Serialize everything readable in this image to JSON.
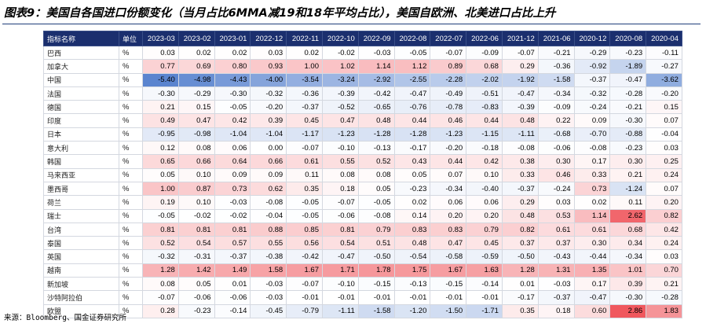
{
  "title": "图表9：美国自各国进口份额变化（当月占比6MMA减19和18年平均占比），美国自欧洲、北美进口占比上升",
  "table": {
    "header_name": "指标名称",
    "header_unit": "单位",
    "columns": [
      "2023-03",
      "2023-02",
      "2023-01",
      "2022-12",
      "2022-11",
      "2022-10",
      "2022-09",
      "2022-08",
      "2022-07",
      "2022-06",
      "2021-12",
      "2021-06",
      "2020-12",
      "2020-08",
      "2020-04"
    ],
    "rows": [
      {
        "name": "巴西",
        "unit": "%",
        "values": [
          "0.03",
          "0.02",
          "0.02",
          "0.03",
          "0.02",
          "-0.02",
          "-0.03",
          "-0.05",
          "-0.07",
          "-0.09",
          "-0.07",
          "-0.21",
          "-0.29",
          "-0.23",
          "-0.11"
        ]
      },
      {
        "name": "加拿大",
        "unit": "%",
        "values": [
          "0.77",
          "0.69",
          "0.80",
          "0.93",
          "1.00",
          "1.02",
          "1.14",
          "1.12",
          "0.89",
          "0.68",
          "0.29",
          "-0.36",
          "-0.92",
          "-1.89",
          "-0.27"
        ]
      },
      {
        "name": "中国",
        "unit": "%",
        "values": [
          "-5.40",
          "-4.98",
          "-4.43",
          "-4.00",
          "-3.54",
          "-3.24",
          "-2.92",
          "-2.55",
          "-2.28",
          "-2.02",
          "-1.92",
          "-1.58",
          "-0.37",
          "-0.47",
          "-3.62"
        ]
      },
      {
        "name": "法国",
        "unit": "%",
        "values": [
          "-0.30",
          "-0.29",
          "-0.30",
          "-0.32",
          "-0.36",
          "-0.39",
          "-0.42",
          "-0.47",
          "-0.49",
          "-0.51",
          "-0.47",
          "-0.34",
          "-0.32",
          "-0.28",
          "-0.20"
        ]
      },
      {
        "name": "德国",
        "unit": "%",
        "values": [
          "0.21",
          "0.15",
          "-0.05",
          "-0.20",
          "-0.37",
          "-0.52",
          "-0.65",
          "-0.76",
          "-0.78",
          "-0.83",
          "-0.39",
          "-0.09",
          "-0.24",
          "-0.21",
          "0.15"
        ]
      },
      {
        "name": "印度",
        "unit": "%",
        "values": [
          "0.49",
          "0.47",
          "0.42",
          "0.39",
          "0.45",
          "0.47",
          "0.48",
          "0.44",
          "0.46",
          "0.44",
          "0.48",
          "0.22",
          "0.09",
          "-0.30",
          "0.07"
        ]
      },
      {
        "name": "日本",
        "unit": "%",
        "values": [
          "-0.95",
          "-0.98",
          "-1.04",
          "-1.04",
          "-1.17",
          "-1.23",
          "-1.28",
          "-1.28",
          "-1.23",
          "-1.15",
          "-1.11",
          "-0.68",
          "-0.70",
          "-0.88",
          "-0.04"
        ]
      },
      {
        "name": "意大利",
        "unit": "%",
        "values": [
          "0.12",
          "0.08",
          "0.06",
          "0.00",
          "-0.07",
          "-0.10",
          "-0.13",
          "-0.17",
          "-0.20",
          "-0.18",
          "-0.08",
          "-0.06",
          "-0.08",
          "-0.23",
          "0.03"
        ]
      },
      {
        "name": "韩国",
        "unit": "%",
        "values": [
          "0.65",
          "0.66",
          "0.64",
          "0.66",
          "0.61",
          "0.55",
          "0.52",
          "0.43",
          "0.44",
          "0.42",
          "0.38",
          "0.30",
          "0.17",
          "0.30",
          "0.25"
        ]
      },
      {
        "name": "马来西亚",
        "unit": "%",
        "values": [
          "0.05",
          "0.10",
          "0.09",
          "0.09",
          "0.11",
          "0.08",
          "0.08",
          "0.05",
          "0.07",
          "0.10",
          "0.33",
          "0.46",
          "0.33",
          "0.21",
          "0.24"
        ]
      },
      {
        "name": "墨西哥",
        "unit": "%",
        "values": [
          "1.00",
          "0.87",
          "0.73",
          "0.62",
          "0.35",
          "0.18",
          "0.05",
          "-0.23",
          "-0.34",
          "-0.40",
          "-0.37",
          "-0.24",
          "0.73",
          "-1.24",
          "0.07"
        ]
      },
      {
        "name": "荷兰",
        "unit": "%",
        "values": [
          "0.19",
          "0.10",
          "-0.03",
          "-0.08",
          "-0.05",
          "-0.07",
          "-0.05",
          "0.02",
          "0.06",
          "0.06",
          "0.29",
          "0.03",
          "0.02",
          "0.11",
          "0.20"
        ]
      },
      {
        "name": "瑞士",
        "unit": "%",
        "values": [
          "-0.05",
          "-0.02",
          "-0.02",
          "-0.04",
          "-0.05",
          "-0.06",
          "-0.08",
          "0.14",
          "0.20",
          "0.20",
          "0.48",
          "0.53",
          "1.14",
          "2.62",
          "0.82"
        ]
      },
      {
        "name": "台湾",
        "unit": "%",
        "values": [
          "0.81",
          "0.81",
          "0.81",
          "0.88",
          "0.85",
          "0.81",
          "0.79",
          "0.83",
          "0.83",
          "0.79",
          "0.82",
          "0.61",
          "0.61",
          "0.68",
          "0.42"
        ]
      },
      {
        "name": "泰国",
        "unit": "%",
        "values": [
          "0.52",
          "0.54",
          "0.57",
          "0.55",
          "0.56",
          "0.54",
          "0.51",
          "0.48",
          "0.47",
          "0.45",
          "0.37",
          "0.37",
          "0.30",
          "0.34",
          "0.24"
        ]
      },
      {
        "name": "英国",
        "unit": "%",
        "values": [
          "-0.32",
          "-0.31",
          "-0.37",
          "-0.38",
          "-0.42",
          "-0.47",
          "-0.50",
          "-0.54",
          "-0.58",
          "-0.59",
          "-0.50",
          "-0.43",
          "-0.44",
          "-0.34",
          "0.03"
        ]
      },
      {
        "name": "越南",
        "unit": "%",
        "values": [
          "1.28",
          "1.42",
          "1.49",
          "1.58",
          "1.67",
          "1.71",
          "1.78",
          "1.75",
          "1.67",
          "1.63",
          "1.28",
          "1.31",
          "1.35",
          "1.01",
          "0.70"
        ]
      },
      {
        "name": "新加坡",
        "unit": "%",
        "values": [
          "0.08",
          "0.05",
          "0.01",
          "-0.03",
          "-0.07",
          "-0.10",
          "-0.15",
          "-0.13",
          "-0.15",
          "-0.14",
          "0.01",
          "-0.03",
          "0.17",
          "0.39",
          "0.21"
        ]
      },
      {
        "name": "沙特阿拉伯",
        "unit": "%",
        "values": [
          "-0.07",
          "-0.06",
          "-0.06",
          "-0.03",
          "-0.01",
          "-0.01",
          "-0.01",
          "-0.01",
          "-0.01",
          "-0.01",
          "-0.17",
          "-0.37",
          "-0.47",
          "-0.30",
          "-0.28"
        ]
      },
      {
        "name": "欧盟",
        "unit": "%",
        "values": [
          "0.28",
          "-0.23",
          "-0.14",
          "-0.45",
          "-0.79",
          "-1.11",
          "-1.58",
          "-1.20",
          "-1.50",
          "-1.71",
          "0.35",
          "0.18",
          "0.60",
          "2.86",
          "1.83"
        ]
      }
    ]
  },
  "colors": {
    "header_bg": "#1b2f6e",
    "positive_max": "#f0585e",
    "negative_max": "#5a84cf",
    "neutral": "#ffffff",
    "title_rule": "#1f3e7a"
  },
  "source": "来源：Bloomberg、国金证券研究所"
}
